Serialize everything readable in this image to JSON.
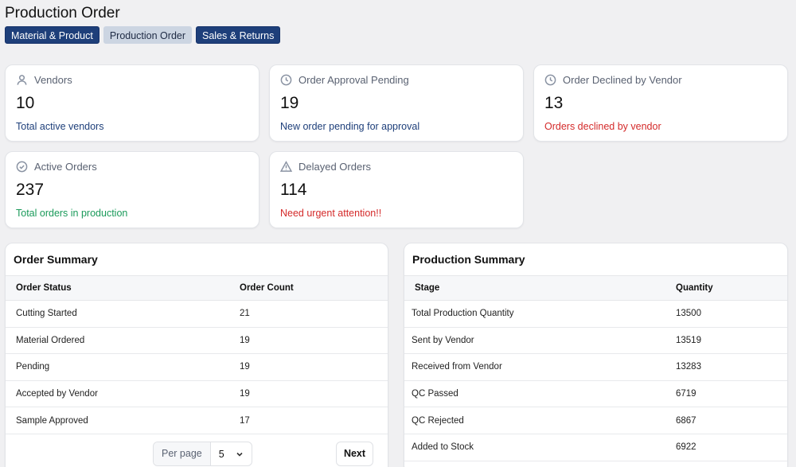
{
  "page": {
    "title": "Production Order"
  },
  "tabs": [
    {
      "label": "Material & Product",
      "active": false
    },
    {
      "label": "Production Order",
      "active": true
    },
    {
      "label": "Sales & Returns",
      "active": false
    }
  ],
  "stats": [
    {
      "icon": "user-icon",
      "label": "Vendors",
      "value": "10",
      "sub": "Total active vendors",
      "sub_color": "blue"
    },
    {
      "icon": "clock-icon",
      "label": "Order Approval Pending",
      "value": "19",
      "sub": "New order pending for approval",
      "sub_color": "blue"
    },
    {
      "icon": "clock-icon",
      "label": "Order Declined by Vendor",
      "value": "13",
      "sub": "Orders declined by vendor",
      "sub_color": "red"
    },
    {
      "icon": "check-circle-icon",
      "label": "Active Orders",
      "value": "237",
      "sub": "Total orders in production",
      "sub_color": "green"
    },
    {
      "icon": "warning-icon",
      "label": "Delayed Orders",
      "value": "114",
      "sub": "Need urgent attention!!",
      "sub_color": "red"
    }
  ],
  "colors": {
    "brand": "#1e3f7a",
    "red": "#d42a2a",
    "green": "#1a9a5a"
  },
  "order_summary": {
    "title": "Order Summary",
    "columns": [
      "Order Status",
      "Order Count"
    ],
    "rows": [
      [
        "Cutting Started",
        "21"
      ],
      [
        "Material Ordered",
        "19"
      ],
      [
        "Pending",
        "19"
      ],
      [
        "Accepted by Vendor",
        "19"
      ],
      [
        "Sample Approved",
        "17"
      ]
    ],
    "pagination": {
      "per_page_label": "Per page",
      "per_page_value": "5",
      "next_label": "Next"
    }
  },
  "production_summary": {
    "title": "Production Summary",
    "columns": [
      "Stage",
      "Quantity"
    ],
    "rows": [
      [
        "Total Production Quantity",
        "13500"
      ],
      [
        "Sent by Vendor",
        "13519"
      ],
      [
        "Received from Vendor",
        "13283"
      ],
      [
        "QC Passed",
        "6719"
      ],
      [
        "QC Rejected",
        "6867"
      ],
      [
        "Added to Stock",
        "6922"
      ]
    ]
  }
}
